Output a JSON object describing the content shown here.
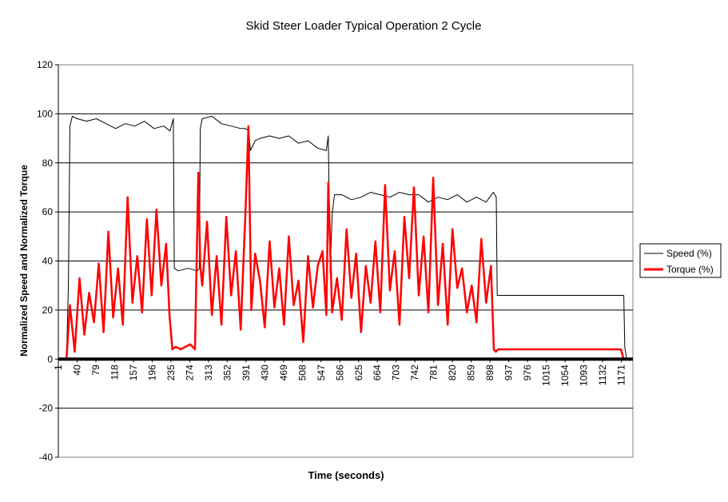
{
  "chart_data": {
    "type": "line",
    "title": "Skid Steer Loader Typical Operation 2 Cycle",
    "xlabel": "Time (seconds)",
    "ylabel": "Normalized Speed and Normalized Torque",
    "ylim": [
      -40,
      120
    ],
    "y_ticks": [
      -40,
      -20,
      0,
      20,
      40,
      60,
      80,
      100,
      120
    ],
    "xlim": [
      1,
      1195
    ],
    "x_ticks": [
      1,
      40,
      79,
      118,
      157,
      196,
      235,
      274,
      313,
      352,
      391,
      430,
      469,
      508,
      547,
      586,
      625,
      664,
      703,
      742,
      781,
      820,
      859,
      898,
      937,
      976,
      1015,
      1054,
      1093,
      1132,
      1171
    ],
    "grid": true,
    "legend_position": "right",
    "series": [
      {
        "name": "Speed (%)",
        "color": "#000000",
        "x": [
          1,
          18,
          22,
          25,
          30,
          40,
          60,
          80,
          100,
          120,
          140,
          160,
          180,
          200,
          220,
          233,
          240,
          242,
          250,
          270,
          290,
          294,
          296,
          300,
          320,
          340,
          360,
          380,
          390,
          397,
          400,
          410,
          420,
          440,
          460,
          480,
          500,
          520,
          540,
          558,
          562,
          566,
          570,
          575,
          590,
          610,
          630,
          650,
          670,
          690,
          710,
          730,
          750,
          770,
          790,
          810,
          830,
          850,
          870,
          890,
          905,
          911,
          913,
          916,
          940,
          1000,
          1060,
          1120,
          1170,
          1176,
          1178,
          1182,
          1195
        ],
        "values": [
          0,
          0,
          30,
          95,
          99,
          98,
          97,
          98,
          96,
          94,
          96,
          95,
          97,
          94,
          95,
          93,
          98,
          37,
          36,
          37,
          36,
          37,
          94,
          98,
          99,
          96,
          95,
          94,
          94,
          93,
          85,
          89,
          90,
          91,
          90,
          91,
          88,
          89,
          86,
          85,
          91,
          35,
          59,
          67,
          67,
          65,
          66,
          68,
          67,
          66,
          68,
          67,
          67,
          64,
          66,
          65,
          67,
          64,
          66,
          64,
          68,
          66,
          26,
          26,
          26,
          26,
          26,
          26,
          26,
          26,
          5,
          0,
          0
        ]
      },
      {
        "name": "Torque (%)",
        "color": "#ff0000",
        "x": [
          1,
          18,
          25,
          35,
          45,
          55,
          65,
          75,
          85,
          95,
          105,
          115,
          125,
          135,
          145,
          155,
          165,
          175,
          185,
          195,
          205,
          215,
          225,
          232,
          238,
          245,
          255,
          265,
          275,
          285,
          292,
          296,
          300,
          310,
          320,
          330,
          340,
          350,
          360,
          370,
          380,
          390,
          396,
          402,
          410,
          420,
          430,
          440,
          450,
          460,
          470,
          480,
          490,
          500,
          510,
          520,
          530,
          540,
          550,
          558,
          562,
          570,
          580,
          590,
          600,
          610,
          620,
          630,
          640,
          650,
          660,
          670,
          680,
          690,
          700,
          710,
          720,
          730,
          740,
          750,
          760,
          770,
          780,
          790,
          800,
          810,
          820,
          830,
          840,
          850,
          860,
          870,
          880,
          890,
          900,
          906,
          910,
          915,
          930,
          960,
          1000,
          1040,
          1080,
          1120,
          1160,
          1170,
          1176,
          1180,
          1195
        ],
        "values": [
          0,
          0,
          22,
          3,
          33,
          10,
          27,
          15,
          39,
          11,
          52,
          17,
          37,
          14,
          66,
          23,
          42,
          19,
          57,
          26,
          61,
          30,
          47,
          18,
          4,
          5,
          4,
          5,
          6,
          4,
          76,
          38,
          30,
          56,
          18,
          42,
          14,
          58,
          26,
          44,
          12,
          60,
          95,
          20,
          43,
          32,
          13,
          48,
          21,
          37,
          14,
          50,
          22,
          32,
          7,
          42,
          21,
          38,
          44,
          18,
          72,
          19,
          33,
          16,
          53,
          25,
          43,
          11,
          38,
          23,
          48,
          19,
          71,
          28,
          44,
          14,
          58,
          33,
          70,
          26,
          50,
          19,
          74,
          22,
          47,
          14,
          53,
          29,
          37,
          19,
          30,
          15,
          49,
          23,
          38,
          4,
          3,
          4,
          4,
          4,
          4,
          4,
          4,
          4,
          4,
          4,
          0,
          0,
          0
        ]
      }
    ]
  }
}
